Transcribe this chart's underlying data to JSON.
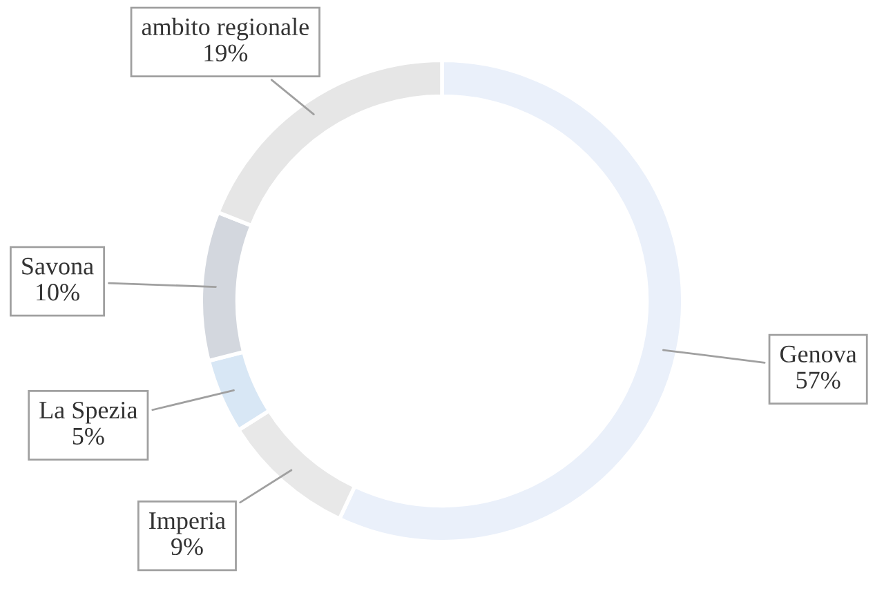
{
  "chart_data": {
    "type": "donut",
    "categories": [
      "Genova",
      "Imperia",
      "La Spezia",
      "Savona",
      "ambito regionale"
    ],
    "values": [
      57,
      9,
      5,
      10,
      19
    ],
    "value_labels": [
      "57%",
      "9%",
      "5%",
      "10%",
      "19%"
    ],
    "colors": [
      "#eaf0fa",
      "#e8e8e8",
      "#d8e7f5",
      "#d3d7de",
      "#e6e6e6"
    ],
    "legend": false
  }
}
